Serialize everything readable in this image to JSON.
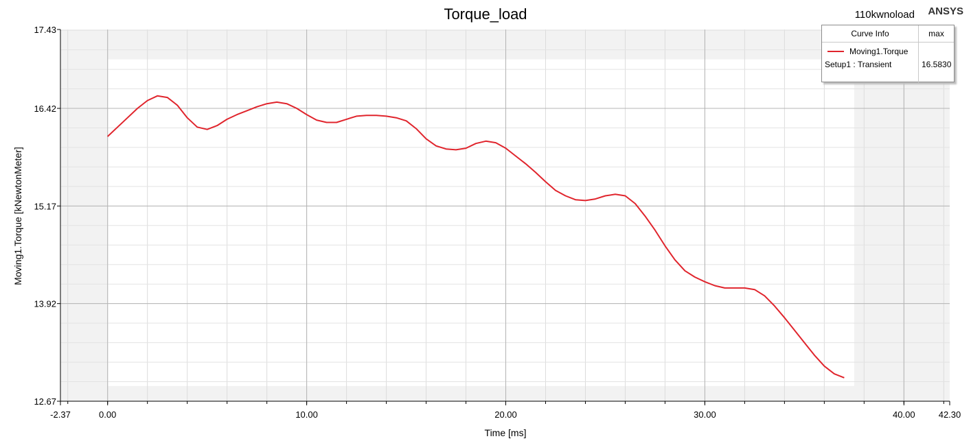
{
  "header": {
    "project": "110kwnoload",
    "brand": "ANSYS"
  },
  "legend": {
    "col_curve": "Curve Info",
    "col_stat": "max",
    "entries": [
      {
        "name": "Moving1.Torque",
        "setup": "Setup1 : Transient",
        "value": "16.5830",
        "color": "#e0242c"
      }
    ]
  },
  "chart_data": {
    "type": "line",
    "title": "Torque_load",
    "xlabel": "Time [ms]",
    "ylabel": "Moving1.Torque [kNewtonMeter]",
    "xlim": [
      -2.37,
      42.3
    ],
    "ylim": [
      12.67,
      17.43
    ],
    "x_ticks": [
      "-2.37",
      "0.00",
      "10.00",
      "20.00",
      "30.00",
      "40.00",
      "42.30"
    ],
    "y_ticks": [
      "17.43",
      "16.42",
      "15.17",
      "13.92",
      "12.67"
    ],
    "grid": true,
    "series": [
      {
        "name": "Moving1.Torque",
        "color": "#e0242c",
        "x": [
          0,
          0.5,
          1,
          1.5,
          2,
          2.5,
          3,
          3.5,
          4,
          4.5,
          5,
          5.5,
          6,
          6.5,
          7,
          7.5,
          8,
          8.5,
          9,
          9.5,
          10,
          10.5,
          11,
          11.5,
          12,
          12.5,
          13,
          13.5,
          14,
          14.5,
          15,
          15.5,
          16,
          16.5,
          17,
          17.5,
          18,
          18.5,
          19,
          19.5,
          20,
          20.5,
          21,
          21.5,
          22,
          22.5,
          23,
          23.5,
          24,
          24.5,
          25,
          25.5,
          26,
          26.5,
          27,
          27.5,
          28,
          28.5,
          29,
          29.5,
          30,
          30.5,
          31,
          31.5,
          32,
          32.5,
          33,
          33.5,
          34,
          34.5,
          35,
          35.5,
          36,
          36.5,
          37
        ],
        "y": [
          16.06,
          16.18,
          16.3,
          16.42,
          16.52,
          16.58,
          16.56,
          16.46,
          16.3,
          16.18,
          16.15,
          16.2,
          16.28,
          16.34,
          16.39,
          16.44,
          16.48,
          16.5,
          16.48,
          16.42,
          16.34,
          16.27,
          16.24,
          16.24,
          16.28,
          16.32,
          16.33,
          16.33,
          16.32,
          16.3,
          16.26,
          16.16,
          16.03,
          15.94,
          15.9,
          15.89,
          15.91,
          15.97,
          16.0,
          15.98,
          15.91,
          15.81,
          15.71,
          15.6,
          15.48,
          15.37,
          15.3,
          15.25,
          15.24,
          15.26,
          15.3,
          15.32,
          15.3,
          15.2,
          15.04,
          14.86,
          14.66,
          14.48,
          14.34,
          14.26,
          14.2,
          14.15,
          14.12,
          14.12,
          14.12,
          14.1,
          14.02,
          13.89,
          13.74,
          13.58,
          13.42,
          13.26,
          13.12,
          13.02,
          12.97
        ]
      }
    ]
  }
}
